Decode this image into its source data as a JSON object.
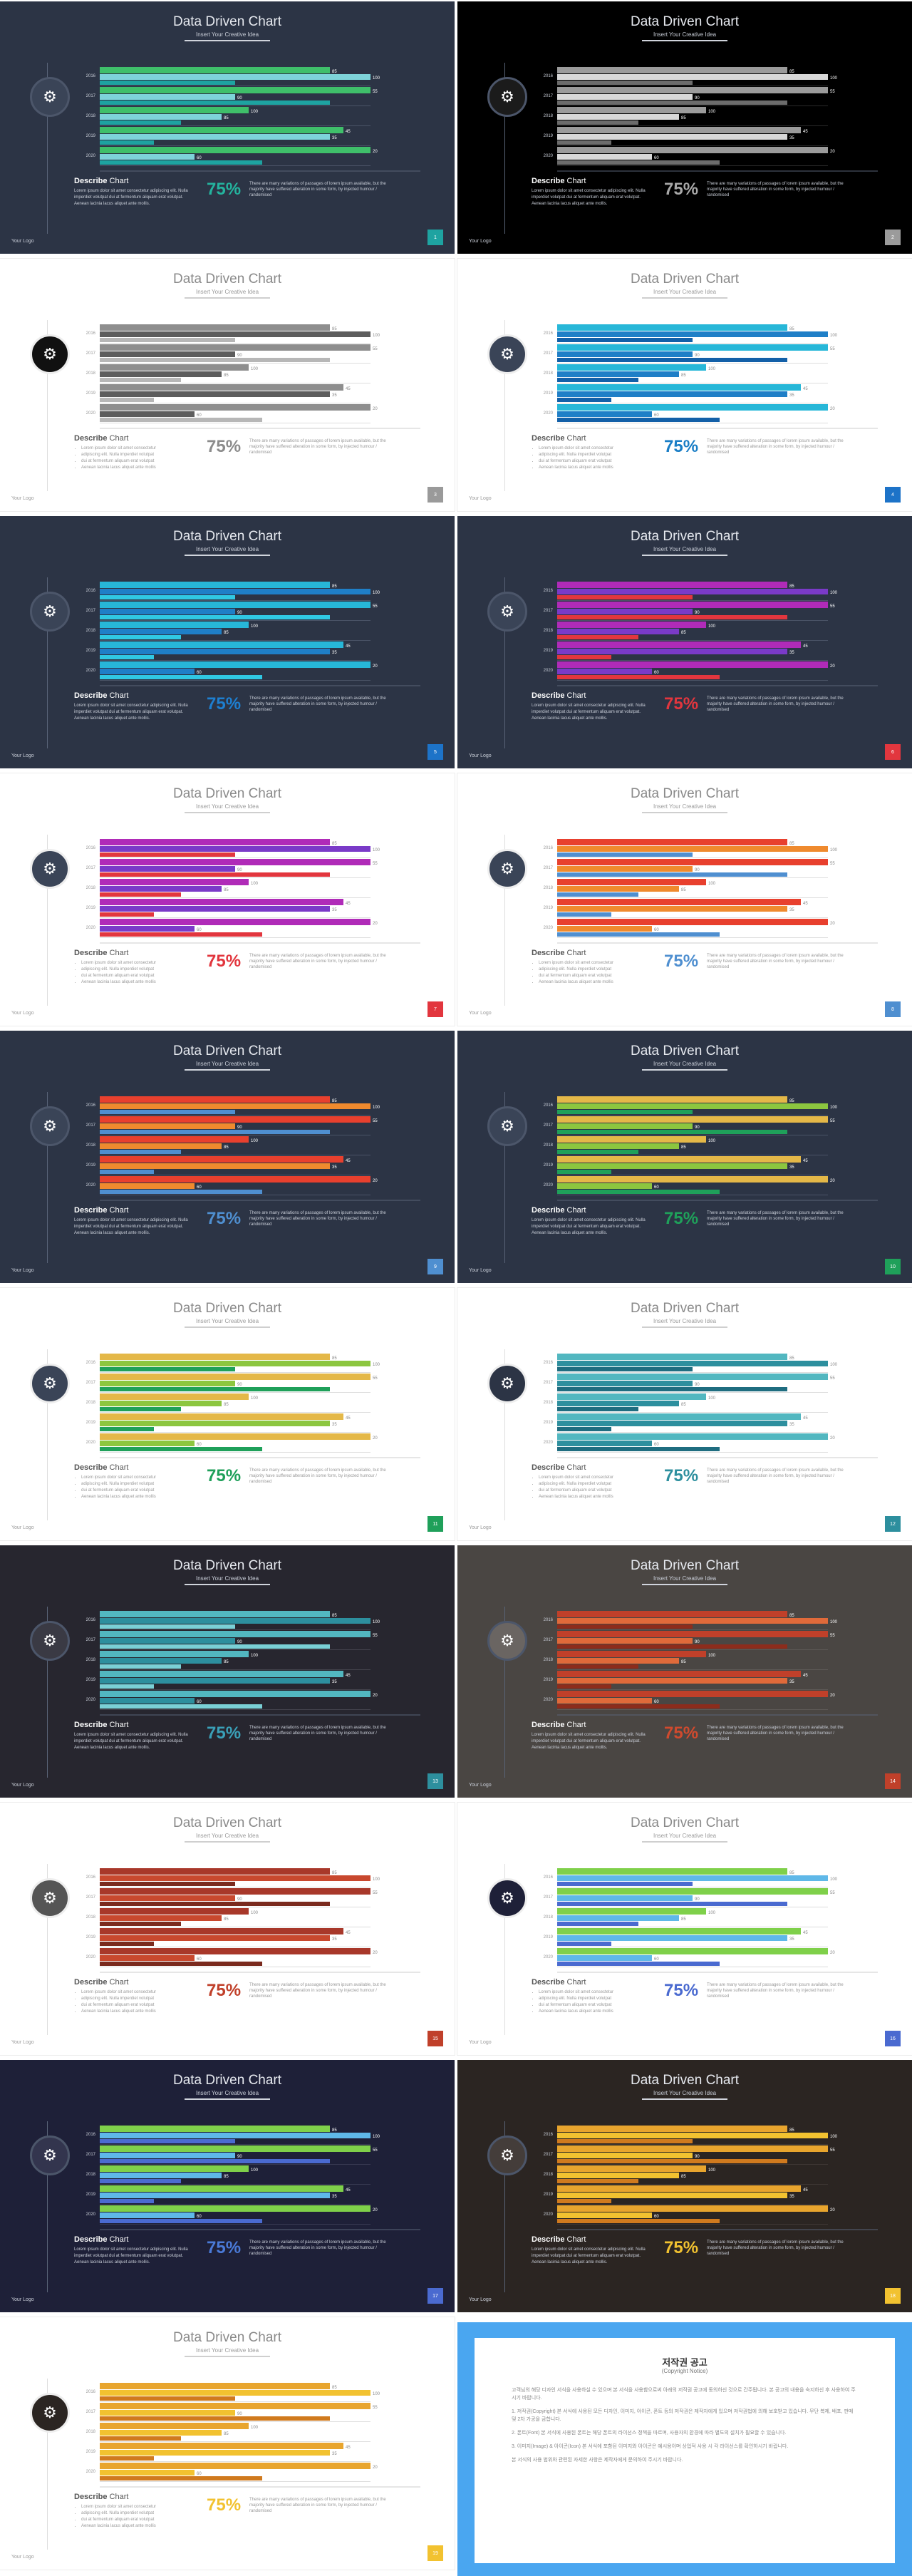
{
  "common": {
    "title": "Data Driven Chart",
    "subtitle": "Insert Your Creative Idea",
    "desc_title_bold": "Describe",
    "desc_title_rest": " Chart",
    "desc_dark": "Lorem ipsum dolor sit amet consectetur adipiscing elit. Nulla imperdiet volutpat dui at fermentum aliquam erat volutpat. Aenean lacinia lacus aliquet ante mollis.",
    "desc_light_bullets": [
      "Lorem ipsum dolor sit amet consectetur",
      "adipiscing elit. Nulla imperdiet volutpat",
      "dui at fermentum aliquam erat volutpat",
      "Aenean lacinia lacus aliquet ante mollis"
    ],
    "percent": "75%",
    "percent_text": "There are many variations of passages of lorem ipsum available, but the majority have suffered alteration in some form, by injected humour / randomised",
    "logo": "Your Logo",
    "gear_icon": "gear-icon"
  },
  "chart_data": {
    "type": "bar",
    "categories": [
      "2016",
      "2017",
      "2018",
      "2019",
      "2020"
    ],
    "xlim": [
      0,
      100
    ],
    "xticks": [
      "0",
      "20",
      "40",
      "60",
      "80",
      "100"
    ],
    "series": [
      {
        "values": [
          85,
          100,
          55,
          90,
          100
        ]
      },
      {
        "values": [
          100,
          50,
          45,
          85,
          35
        ]
      },
      {
        "values": [
          50,
          85,
          30,
          20,
          60
        ]
      }
    ],
    "data_labels": [
      "85",
      "100",
      "55",
      "90",
      "100",
      "85",
      "45",
      "35",
      "20",
      "60"
    ]
  },
  "slides": [
    {
      "page": "1",
      "bg": "#2c3445",
      "dark": true,
      "colors": [
        "#3fbf6a",
        "#7ed3d9",
        "#1ea3a1"
      ],
      "accent": "#1ea3a1",
      "circle": "#3a4457",
      "pct_color": "#24b39e",
      "gap": "#4a5366"
    },
    {
      "page": "2",
      "bg": "#000000",
      "dark": true,
      "colors": [
        "#9b9b9b",
        "#d8d8d8",
        "#6c6c6c"
      ],
      "accent": "#9b9b9b",
      "circle": "#1b1b1b",
      "pct_color": "#a8a8a8",
      "gap": "#2a2a2a"
    },
    {
      "page": "3",
      "bg": "#ffffff",
      "dark": false,
      "colors": [
        "#8e8e8e",
        "#5d5d5d",
        "#b7b7b7"
      ],
      "accent": "#9a9a9a",
      "circle": "#111111",
      "pct_color": "#8c8c8c",
      "gap": "#dddddd"
    },
    {
      "page": "4",
      "bg": "#ffffff",
      "dark": false,
      "colors": [
        "#27b7d8",
        "#1f7fc7",
        "#1360a8"
      ],
      "accent": "#1d73c8",
      "circle": "#3a4457",
      "pct_color": "#1a7ec6",
      "gap": "#dddddd"
    },
    {
      "page": "5",
      "bg": "#2c3445",
      "dark": true,
      "colors": [
        "#27b7d8",
        "#1f7fc7",
        "#30c8e3"
      ],
      "accent": "#1d73c8",
      "circle": "#3a4457",
      "pct_color": "#1e7fd0",
      "gap": "#4a5366"
    },
    {
      "page": "6",
      "bg": "#2c3445",
      "dark": true,
      "colors": [
        "#b02bb8",
        "#7a3ac8",
        "#e2363e"
      ],
      "accent": "#e2363e",
      "circle": "#3a4457",
      "pct_color": "#e2363e",
      "gap": "#4a5366"
    },
    {
      "page": "7",
      "bg": "#ffffff",
      "dark": false,
      "colors": [
        "#b02bb8",
        "#7a3ac8",
        "#e2363e"
      ],
      "accent": "#e2363e",
      "circle": "#3a4457",
      "pct_color": "#e2363e",
      "gap": "#dddddd"
    },
    {
      "page": "8",
      "bg": "#ffffff",
      "dark": false,
      "colors": [
        "#e8402e",
        "#ef8a2e",
        "#4f8fd0"
      ],
      "accent": "#4f8fd0",
      "circle": "#3a4457",
      "pct_color": "#4f8fd0",
      "gap": "#dddddd"
    },
    {
      "page": "9",
      "bg": "#2c3445",
      "dark": true,
      "colors": [
        "#e8402e",
        "#ef8a2e",
        "#4f8fd0"
      ],
      "accent": "#4f8fd0",
      "circle": "#3a4457",
      "pct_color": "#4f8fd0",
      "gap": "#4a5366"
    },
    {
      "page": "10",
      "bg": "#2c3445",
      "dark": true,
      "colors": [
        "#e4b848",
        "#8cc63f",
        "#1fa05a"
      ],
      "accent": "#1fa05a",
      "circle": "#3a4457",
      "pct_color": "#1fa05a",
      "gap": "#4a5366"
    },
    {
      "page": "11",
      "bg": "#ffffff",
      "dark": false,
      "colors": [
        "#e4b848",
        "#8cc63f",
        "#1fa05a"
      ],
      "accent": "#1fa05a",
      "circle": "#3a4457",
      "pct_color": "#1fa05a",
      "gap": "#dddddd"
    },
    {
      "page": "12",
      "bg": "#ffffff",
      "dark": false,
      "colors": [
        "#52b7c0",
        "#2d8f9e",
        "#1f6d80"
      ],
      "accent": "#2d8f9e",
      "circle": "#2c3445",
      "pct_color": "#2d8f9e",
      "gap": "#dddddd"
    },
    {
      "page": "13",
      "bg": "#27262f",
      "dark": true,
      "colors": [
        "#52b7c0",
        "#2d8f9e",
        "#7ad0d6"
      ],
      "accent": "#2d8f9e",
      "circle": "#3a3a44",
      "pct_color": "#3aa0b8",
      "gap": "#45444e"
    },
    {
      "page": "14",
      "bg": "#4a4643",
      "dark": true,
      "colors": [
        "#c0402a",
        "#e06a3a",
        "#8c2c1c"
      ],
      "accent": "#c0402a",
      "circle": "#6a6562",
      "pct_color": "#d04a2e",
      "gap": "#5e5a57"
    },
    {
      "page": "15",
      "bg": "#ffffff",
      "dark": false,
      "colors": [
        "#a8382a",
        "#c8482e",
        "#7a2a1e"
      ],
      "accent": "#c0402a",
      "circle": "#555555",
      "pct_color": "#c0402a",
      "gap": "#dddddd"
    },
    {
      "page": "16",
      "bg": "#ffffff",
      "dark": false,
      "colors": [
        "#7fd04a",
        "#5fb8e8",
        "#4a6ad0"
      ],
      "accent": "#4a6ad0",
      "circle": "#1e2038",
      "pct_color": "#4a6ad0",
      "gap": "#dddddd"
    },
    {
      "page": "17",
      "bg": "#1e2038",
      "dark": true,
      "colors": [
        "#7fd04a",
        "#5fb8e8",
        "#4a6ad0"
      ],
      "accent": "#4a6ad0",
      "circle": "#33354e",
      "pct_color": "#4a7ad8",
      "gap": "#383a52"
    },
    {
      "page": "18",
      "bg": "#2b2522",
      "dark": true,
      "colors": [
        "#e8a52e",
        "#f2c230",
        "#d07a1e"
      ],
      "accent": "#f2c230",
      "circle": "#443d3a",
      "pct_color": "#f2c230",
      "gap": "#3f3835"
    },
    {
      "page": "19",
      "bg": "#ffffff",
      "dark": false,
      "colors": [
        "#e8a52e",
        "#f2c230",
        "#d07a1e"
      ],
      "accent": "#f2c230",
      "circle": "#2b2522",
      "pct_color": "#f2c230",
      "gap": "#dddddd"
    }
  ],
  "notice": {
    "title": "저작권 공고",
    "subtitle": "(Copyright Notice)",
    "paragraphs": [
      "고객님의 해당 디자인 서식을 사용하실 수 있으며 본 서식을 사용함으로써 아래의 저작권 공고에 동의하신 것으로 간주됩니다. 본 공고의 내용을 숙지하신 후 사용하여 주시기 바랍니다.",
      "1. 저작권(Copyright) 본 서식에 사용된 모든 디자인, 이미지, 아이콘, 폰트 등의 저작권은 제작자에게 있으며 저작권법에 의해 보호받고 있습니다. 무단 복제, 배포, 판매 및 2차 가공을 금합니다.",
      "2. 폰트(Font) 본 서식에 사용된 폰트는 해당 폰트의 라이선스 정책을 따르며, 사용자의 환경에 따라 별도의 설치가 필요할 수 있습니다.",
      "3. 이미지(Image) & 아이콘(Icon) 본 서식에 포함된 이미지와 아이콘은 예시용이며 상업적 사용 시 각 라이선스를 확인하시기 바랍니다.",
      "본 서식의 사용 범위와 관련된 자세한 사항은 제작자에게 문의하여 주시기 바랍니다."
    ]
  }
}
